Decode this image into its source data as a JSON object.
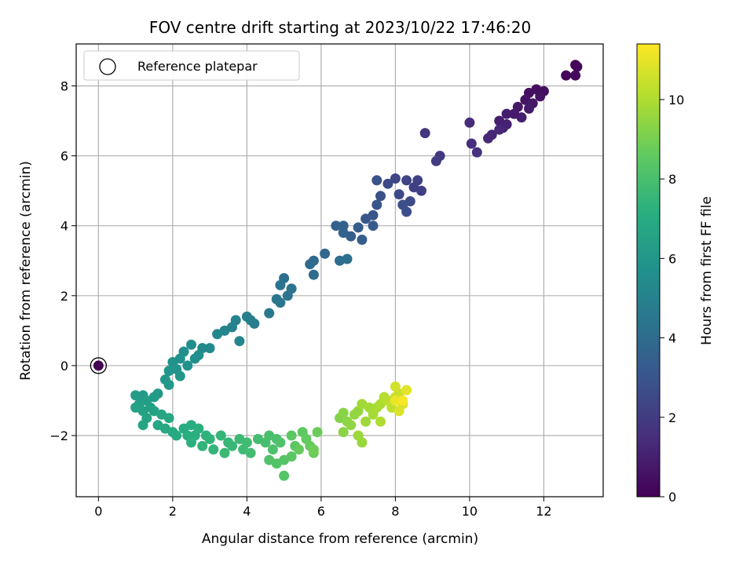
{
  "chart_data": {
    "type": "scatter",
    "title": "FOV centre drift starting at 2023/10/22 17:46:20",
    "xlabel": "Angular distance from reference (arcmin)",
    "ylabel": "Rotation from reference (arcmin)",
    "xlim": [
      -0.6,
      13.6
    ],
    "ylim": [
      -3.75,
      9.2
    ],
    "x_ticks": [
      0,
      2,
      4,
      6,
      8,
      10,
      12
    ],
    "y_ticks": [
      -2,
      0,
      2,
      4,
      6,
      8
    ],
    "x_tick_labels": [
      "0",
      "2",
      "4",
      "6",
      "8",
      "10",
      "12"
    ],
    "y_tick_labels": [
      "−2",
      "0",
      "2",
      "4",
      "6",
      "8"
    ],
    "grid": true,
    "legend": {
      "position": "top-left",
      "entries": [
        "Reference platepar"
      ]
    },
    "colorbar": {
      "label": "Hours from first FF file",
      "range": [
        0,
        11.4
      ],
      "ticks": [
        0,
        2,
        4,
        6,
        8,
        10
      ],
      "tick_labels": [
        "0",
        "2",
        "4",
        "6",
        "8",
        "10"
      ],
      "colormap": "viridis"
    },
    "reference_point": {
      "x": 0,
      "y": 0,
      "value": 0
    },
    "series": [
      {
        "points": [
          [
            12.85,
            8.6,
            0.1
          ],
          [
            12.9,
            8.55,
            0.15
          ],
          [
            12.6,
            8.3,
            0.2
          ],
          [
            12.85,
            8.3,
            0.25
          ],
          [
            12.0,
            7.85,
            0.4
          ],
          [
            11.8,
            7.9,
            0.45
          ],
          [
            11.6,
            7.8,
            0.5
          ],
          [
            11.9,
            7.7,
            0.55
          ],
          [
            11.5,
            7.6,
            0.6
          ],
          [
            11.7,
            7.5,
            0.7
          ],
          [
            11.3,
            7.4,
            0.75
          ],
          [
            11.6,
            7.35,
            0.8
          ],
          [
            11.2,
            7.2,
            0.85
          ],
          [
            11.0,
            7.2,
            0.9
          ],
          [
            11.4,
            7.1,
            0.95
          ],
          [
            10.8,
            7.0,
            1.0
          ],
          [
            11.0,
            6.9,
            1.05
          ],
          [
            10.9,
            6.8,
            1.1
          ],
          [
            10.6,
            6.6,
            1.2
          ],
          [
            10.5,
            6.5,
            1.25
          ],
          [
            10.8,
            6.75,
            1.3
          ],
          [
            10.0,
            6.95,
            1.4
          ],
          [
            10.05,
            6.35,
            1.5
          ],
          [
            10.2,
            6.1,
            1.6
          ],
          [
            8.8,
            6.65,
            1.8
          ],
          [
            9.2,
            6.0,
            1.9
          ],
          [
            9.1,
            5.85,
            2.0
          ],
          [
            8.7,
            5.0,
            2.1
          ],
          [
            8.5,
            5.1,
            2.2
          ],
          [
            8.6,
            5.3,
            2.25
          ],
          [
            8.3,
            5.3,
            2.3
          ],
          [
            8.0,
            5.35,
            2.4
          ],
          [
            7.8,
            5.2,
            2.5
          ],
          [
            8.1,
            4.9,
            2.55
          ],
          [
            8.4,
            4.7,
            2.6
          ],
          [
            8.3,
            4.4,
            2.7
          ],
          [
            8.2,
            4.6,
            2.75
          ],
          [
            7.6,
            4.85,
            2.8
          ],
          [
            7.5,
            5.3,
            2.9
          ],
          [
            7.5,
            4.6,
            3.0
          ],
          [
            7.4,
            4.3,
            3.05
          ],
          [
            7.2,
            4.2,
            3.1
          ],
          [
            7.4,
            4.0,
            3.2
          ],
          [
            7.0,
            3.95,
            3.3
          ],
          [
            6.8,
            3.7,
            3.35
          ],
          [
            7.1,
            3.6,
            3.4
          ],
          [
            6.6,
            4.0,
            3.5
          ],
          [
            6.4,
            4.0,
            3.55
          ],
          [
            6.6,
            3.8,
            3.6
          ],
          [
            6.1,
            3.2,
            3.8
          ],
          [
            5.8,
            3.0,
            3.9
          ],
          [
            5.7,
            2.9,
            4.0
          ],
          [
            5.8,
            2.6,
            4.05
          ],
          [
            6.5,
            3.0,
            4.1
          ],
          [
            6.7,
            3.05,
            4.15
          ],
          [
            5.0,
            2.5,
            4.2
          ],
          [
            5.2,
            2.2,
            4.3
          ],
          [
            4.9,
            2.3,
            4.35
          ],
          [
            5.1,
            2.0,
            4.4
          ],
          [
            4.8,
            1.9,
            4.5
          ],
          [
            4.9,
            1.8,
            4.55
          ],
          [
            4.6,
            1.5,
            4.6
          ],
          [
            4.2,
            1.2,
            4.75
          ],
          [
            4.0,
            1.4,
            4.85
          ],
          [
            4.1,
            1.3,
            4.9
          ],
          [
            3.7,
            1.3,
            5.0
          ],
          [
            3.6,
            1.1,
            5.05
          ],
          [
            3.4,
            1.0,
            5.1
          ],
          [
            3.8,
            0.7,
            5.2
          ],
          [
            3.2,
            0.9,
            5.25
          ],
          [
            3.0,
            0.5,
            5.35
          ],
          [
            2.8,
            0.5,
            5.4
          ],
          [
            2.7,
            0.3,
            5.5
          ],
          [
            2.5,
            0.6,
            5.55
          ],
          [
            2.3,
            0.4,
            5.6
          ],
          [
            2.6,
            0.2,
            5.65
          ],
          [
            2.4,
            0.0,
            5.7
          ],
          [
            2.2,
            0.2,
            5.75
          ],
          [
            2.0,
            0.1,
            5.8
          ],
          [
            2.1,
            -0.1,
            5.85
          ],
          [
            1.9,
            -0.15,
            5.9
          ],
          [
            2.2,
            -0.3,
            5.95
          ],
          [
            1.8,
            -0.4,
            6.0
          ],
          [
            1.9,
            -0.55,
            6.05
          ],
          [
            1.6,
            -0.8,
            6.1
          ],
          [
            1.5,
            -0.9,
            6.15
          ],
          [
            1.2,
            -0.85,
            6.2
          ],
          [
            1.0,
            -0.85,
            6.25
          ],
          [
            1.3,
            -1.0,
            6.3
          ],
          [
            1.1,
            -1.1,
            6.35
          ],
          [
            1.4,
            -1.2,
            6.4
          ],
          [
            1.2,
            -1.3,
            6.45
          ],
          [
            1.0,
            -1.2,
            6.5
          ],
          [
            1.5,
            -1.3,
            6.55
          ],
          [
            1.3,
            -1.5,
            6.6
          ],
          [
            1.7,
            -1.4,
            6.65
          ],
          [
            1.2,
            -1.7,
            6.7
          ],
          [
            1.6,
            -1.7,
            6.75
          ],
          [
            1.9,
            -1.5,
            6.8
          ],
          [
            1.8,
            -1.8,
            6.85
          ],
          [
            2.0,
            -1.9,
            6.9
          ],
          [
            2.1,
            -2.0,
            6.95
          ],
          [
            2.3,
            -1.8,
            7.0
          ],
          [
            2.5,
            -1.7,
            7.05
          ],
          [
            2.4,
            -2.0,
            7.1
          ],
          [
            2.6,
            -2.0,
            7.15
          ],
          [
            2.7,
            -1.8,
            7.2
          ],
          [
            2.5,
            -2.2,
            7.25
          ],
          [
            2.9,
            -2.0,
            7.3
          ],
          [
            3.0,
            -2.1,
            7.35
          ],
          [
            2.8,
            -2.3,
            7.4
          ],
          [
            3.1,
            -2.4,
            7.45
          ],
          [
            3.3,
            -2.0,
            7.5
          ],
          [
            3.5,
            -2.2,
            7.55
          ],
          [
            3.6,
            -2.3,
            7.6
          ],
          [
            3.4,
            -2.5,
            7.65
          ],
          [
            3.8,
            -2.1,
            7.7
          ],
          [
            3.9,
            -2.4,
            7.75
          ],
          [
            4.0,
            -2.2,
            7.8
          ],
          [
            4.1,
            -2.5,
            7.85
          ],
          [
            4.3,
            -2.1,
            7.9
          ],
          [
            4.5,
            -2.2,
            7.95
          ],
          [
            4.6,
            -2.0,
            8.0
          ],
          [
            4.8,
            -2.1,
            8.05
          ],
          [
            4.7,
            -2.4,
            8.1
          ],
          [
            4.9,
            -2.2,
            8.15
          ],
          [
            4.6,
            -2.7,
            8.2
          ],
          [
            4.8,
            -2.8,
            8.25
          ],
          [
            5.0,
            -2.7,
            8.3
          ],
          [
            5.0,
            -3.15,
            8.35
          ],
          [
            5.2,
            -2.6,
            8.4
          ],
          [
            5.3,
            -2.3,
            8.45
          ],
          [
            5.2,
            -2.0,
            8.5
          ],
          [
            5.5,
            -1.9,
            8.55
          ],
          [
            5.6,
            -2.1,
            8.6
          ],
          [
            5.4,
            -2.4,
            8.65
          ],
          [
            5.7,
            -2.3,
            8.7
          ],
          [
            5.8,
            -2.5,
            8.75
          ],
          [
            5.9,
            -1.9,
            8.8
          ],
          [
            5.8,
            -2.4,
            8.85
          ],
          [
            6.5,
            -1.5,
            9.2
          ],
          [
            6.6,
            -1.35,
            9.3
          ],
          [
            6.7,
            -1.6,
            9.35
          ],
          [
            6.6,
            -1.9,
            9.4
          ],
          [
            6.8,
            -1.7,
            9.45
          ],
          [
            6.9,
            -1.4,
            9.5
          ],
          [
            7.0,
            -1.3,
            9.55
          ],
          [
            7.1,
            -2.2,
            9.6
          ],
          [
            7.0,
            -2.0,
            9.65
          ],
          [
            7.2,
            -1.6,
            9.7
          ],
          [
            7.1,
            -1.1,
            9.75
          ],
          [
            7.3,
            -1.2,
            9.8
          ],
          [
            7.4,
            -1.4,
            9.85
          ],
          [
            7.5,
            -1.2,
            9.9
          ],
          [
            7.6,
            -1.1,
            9.95
          ],
          [
            7.6,
            -1.6,
            10.0
          ],
          [
            7.7,
            -0.9,
            10.1
          ],
          [
            7.8,
            -1.0,
            10.2
          ],
          [
            7.9,
            -1.2,
            10.3
          ],
          [
            8.0,
            -0.9,
            10.4
          ],
          [
            8.1,
            -0.8,
            10.5
          ],
          [
            8.0,
            -0.6,
            10.6
          ],
          [
            8.2,
            -1.1,
            10.7
          ],
          [
            8.1,
            -1.3,
            10.8
          ],
          [
            8.3,
            -0.7,
            10.9
          ],
          [
            8.0,
            -1.0,
            11.1
          ],
          [
            8.2,
            -1.0,
            11.3
          ]
        ]
      }
    ]
  }
}
